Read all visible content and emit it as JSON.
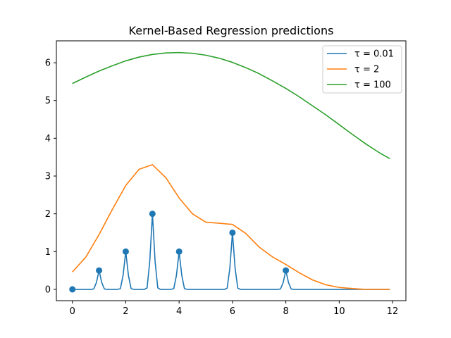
{
  "chart_data": {
    "type": "line",
    "title": "Kernel-Based Regression predictions",
    "xlabel": "",
    "ylabel": "",
    "xlim": [
      -0.6,
      12.5
    ],
    "ylim": [
      -0.3,
      6.58
    ],
    "xticks": [
      0,
      2,
      4,
      6,
      8,
      10,
      12
    ],
    "yticks": [
      0,
      1,
      2,
      3,
      4,
      5,
      6
    ],
    "legend_location": "top-right",
    "grid": false,
    "training_points": {
      "color": "#1f77b4",
      "x": [
        0,
        1,
        2,
        3,
        4,
        6,
        8
      ],
      "y": [
        0,
        0.5,
        1,
        2,
        1,
        1.5,
        0.5
      ]
    },
    "series": [
      {
        "name": "τ = 0.01",
        "color": "#1f77b4",
        "x": [
          0,
          0.1,
          0.2,
          0.3,
          0.4,
          0.5,
          0.6,
          0.7,
          0.8,
          0.9,
          1.0,
          1.1,
          1.2,
          1.3,
          1.4,
          1.5,
          1.6,
          1.7,
          1.8,
          1.9,
          2.0,
          2.1,
          2.2,
          2.3,
          2.4,
          2.5,
          2.6,
          2.7,
          2.8,
          2.9,
          3.0,
          3.1,
          3.2,
          3.3,
          3.4,
          3.5,
          3.6,
          3.7,
          3.8,
          3.9,
          4.0,
          4.1,
          4.2,
          4.3,
          4.4,
          4.5,
          4.6,
          4.7,
          4.8,
          4.9,
          5.0,
          5.1,
          5.2,
          5.3,
          5.4,
          5.5,
          5.6,
          5.7,
          5.8,
          5.9,
          6.0,
          6.1,
          6.2,
          6.3,
          6.4,
          6.5,
          6.6,
          6.7,
          6.8,
          6.9,
          7.0,
          7.1,
          7.2,
          7.3,
          7.4,
          7.5,
          7.6,
          7.7,
          7.8,
          7.9,
          8.0,
          8.1,
          8.2,
          8.3,
          8.4,
          8.5,
          8.6,
          8.7,
          8.8,
          8.9,
          9.0,
          9.1,
          9.2,
          9.3,
          9.4,
          9.5,
          9.6,
          9.7,
          9.8,
          9.9,
          10.0,
          10.1,
          10.2,
          10.3,
          10.4,
          10.5,
          10.6,
          10.7,
          10.8,
          10.9,
          11.0,
          11.1,
          11.2,
          11.3,
          11.4,
          11.5,
          11.6,
          11.7,
          11.8,
          11.9
        ],
        "y": [
          0,
          0,
          0,
          0,
          0,
          0,
          0,
          0,
          0.01,
          0.18,
          0.5,
          0.18,
          0.01,
          0,
          0,
          0,
          0,
          0,
          0.02,
          0.37,
          1.0,
          0.37,
          0.02,
          0,
          0,
          0,
          0,
          0,
          0.04,
          0.74,
          2.0,
          0.74,
          0.04,
          0,
          0,
          0,
          0,
          0,
          0.02,
          0.37,
          1.0,
          0.37,
          0.02,
          0,
          0,
          0,
          0,
          0,
          0,
          0,
          0,
          0,
          0,
          0,
          0,
          0,
          0,
          0,
          0.03,
          0.55,
          1.5,
          0.55,
          0.03,
          0,
          0,
          0,
          0,
          0,
          0,
          0,
          0,
          0,
          0,
          0,
          0,
          0,
          0,
          0,
          0.01,
          0.18,
          0.5,
          0.18,
          0.01,
          0,
          0,
          0,
          0,
          0,
          0,
          0,
          0,
          0,
          0,
          0,
          0,
          0,
          0,
          0,
          0,
          0,
          0,
          0,
          0,
          0,
          0,
          0,
          0,
          0,
          0,
          0,
          0,
          0,
          0,
          0,
          0,
          0,
          0,
          0,
          0,
          0
        ]
      },
      {
        "name": "τ = 2",
        "color": "#ff7f0e",
        "x": [
          0,
          0.5,
          1.0,
          1.5,
          2.0,
          2.5,
          3.0,
          3.5,
          4.0,
          4.5,
          5.0,
          5.5,
          6.0,
          6.5,
          7.0,
          7.5,
          8.0,
          8.5,
          9.0,
          9.5,
          10.0,
          10.5,
          11.0,
          11.5,
          11.9
        ],
        "y": [
          0.46,
          0.85,
          1.45,
          2.12,
          2.75,
          3.18,
          3.3,
          2.96,
          2.42,
          2.0,
          1.78,
          1.75,
          1.72,
          1.48,
          1.12,
          0.86,
          0.66,
          0.44,
          0.25,
          0.12,
          0.05,
          0.02,
          0.0,
          0.0,
          0.0
        ]
      },
      {
        "name": "τ = 100",
        "color": "#2ca02c",
        "x": [
          0,
          0.5,
          1.0,
          1.5,
          2.0,
          2.5,
          3.0,
          3.5,
          4.0,
          4.5,
          5.0,
          5.5,
          6.0,
          6.5,
          7.0,
          7.5,
          8.0,
          8.5,
          9.0,
          9.5,
          10.0,
          10.5,
          11.0,
          11.5,
          11.9
        ],
        "y": [
          5.45,
          5.62,
          5.78,
          5.92,
          6.05,
          6.15,
          6.22,
          6.26,
          6.27,
          6.25,
          6.2,
          6.12,
          6.01,
          5.87,
          5.71,
          5.52,
          5.32,
          5.1,
          4.86,
          4.62,
          4.36,
          4.1,
          3.85,
          3.62,
          3.46
        ]
      }
    ]
  }
}
